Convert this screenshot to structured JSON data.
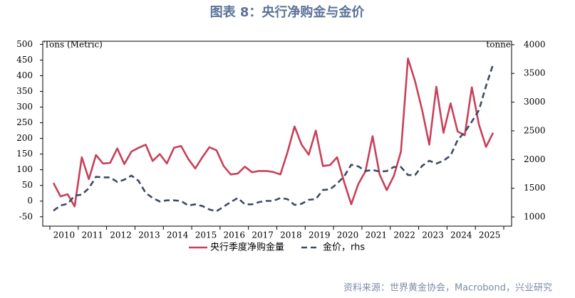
{
  "chart_data": {
    "type": "line",
    "title": "图表 8：央行净购金与金价",
    "y_label": "Tons (Metric)",
    "y2_label": "tonne",
    "source": "资料来源：世界黄金协会，Macrobond，兴业研究",
    "categories": [
      null,
      "2010",
      null,
      null,
      null,
      "2011",
      null,
      null,
      null,
      "2012",
      null,
      null,
      null,
      "2013",
      null,
      null,
      null,
      "2014",
      null,
      null,
      null,
      "2015",
      null,
      null,
      null,
      "2016",
      null,
      null,
      null,
      "2017",
      null,
      null,
      null,
      "2018",
      null,
      null,
      null,
      "2019",
      null,
      null,
      null,
      "2020",
      null,
      null,
      null,
      "2021",
      null,
      null,
      null,
      "2022",
      null,
      null,
      null,
      "2023",
      null,
      null,
      null,
      "2024",
      null,
      null,
      null,
      "2025",
      null
    ],
    "ylim": [
      -80,
      510
    ],
    "yticks": [
      -50,
      0,
      50,
      100,
      150,
      200,
      250,
      300,
      350,
      400,
      450,
      500
    ],
    "y2lim": [
      840,
      4060
    ],
    "y2ticks": [
      1000,
      1500,
      2000,
      2500,
      3000,
      3500,
      4000
    ],
    "series": [
      {
        "name": "央行季度净购金量",
        "color": "#c8405a",
        "values": [
          58,
          15,
          22,
          -17,
          140,
          70,
          147,
          120,
          122,
          168,
          118,
          158,
          170,
          180,
          128,
          150,
          120,
          170,
          176,
          135,
          104,
          140,
          172,
          162,
          112,
          85,
          88,
          110,
          92,
          96,
          96,
          93,
          85,
          155,
          238,
          180,
          148,
          225,
          112,
          115,
          140,
          60,
          -10,
          55,
          95,
          207,
          85,
          35,
          80,
          158,
          455,
          382,
          290,
          180,
          365,
          218,
          312,
          222,
          210,
          363,
          244,
          173,
          218
        ]
      },
      {
        "name": "金价，rhs",
        "color": "#3d4a63",
        "axis": "y2",
        "dashed": true,
        "values": [
          1110,
          1200,
          1230,
          1370,
          1390,
          1500,
          1700,
          1690,
          1690,
          1610,
          1650,
          1720,
          1630,
          1420,
          1330,
          1270,
          1290,
          1290,
          1280,
          1200,
          1220,
          1190,
          1130,
          1100,
          1180,
          1260,
          1330,
          1220,
          1220,
          1260,
          1280,
          1280,
          1330,
          1310,
          1210,
          1230,
          1300,
          1310,
          1470,
          1480,
          1580,
          1710,
          1910,
          1880,
          1800,
          1820,
          1790,
          1800,
          1870,
          1870,
          1730,
          1730,
          1890,
          1980,
          1930,
          1980,
          2070,
          2340,
          2480,
          2660,
          2860,
          3280,
          3660
        ]
      }
    ]
  }
}
